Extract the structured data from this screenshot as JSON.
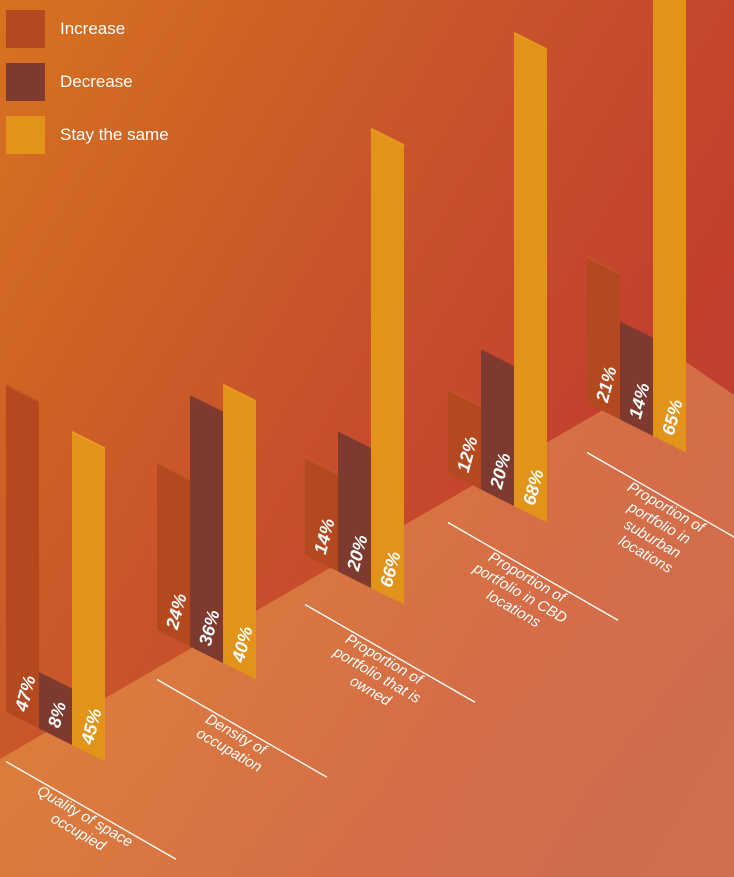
{
  "legend": {
    "increase": "Increase",
    "decrease": "Decrease",
    "same": "Stay the same"
  },
  "colors": {
    "increase": "#b4491f",
    "decrease": "#7e3a2e",
    "same": "#e2941a",
    "increase_highlight": "#c65a26",
    "same_highlight": "#eea423"
  },
  "chart_data": {
    "type": "bar",
    "categories": [
      "Quality of space occupied",
      "Density of occupation",
      "Proportion of portfolio that is owned",
      "Proportion of portfolio in CBD locations",
      "Proportion of portfolio in suburban locations"
    ],
    "series": [
      {
        "name": "Increase",
        "values": [
          47,
          24,
          14,
          12,
          21
        ]
      },
      {
        "name": "Decrease",
        "values": [
          8,
          36,
          20,
          20,
          14
        ]
      },
      {
        "name": "Stay the same",
        "values": [
          45,
          40,
          66,
          68,
          65
        ]
      }
    ],
    "value_labels": [
      [
        "47%",
        "8%",
        "45%"
      ],
      [
        "24%",
        "36%",
        "40%"
      ],
      [
        "14%",
        "20%",
        "66%"
      ],
      [
        "12%",
        "20%",
        "68%"
      ],
      [
        "21%",
        "14%",
        "65%"
      ]
    ],
    "category_label_lines": [
      [
        "Quality of space",
        "occupied"
      ],
      [
        "Density of",
        "occupation"
      ],
      [
        "Proportion of",
        "portfolio that is",
        "owned"
      ],
      [
        "Proportion of",
        "portfolio in CBD",
        "locations"
      ],
      [
        "Proportion of",
        "portfolio in",
        "suburban",
        "locations"
      ]
    ],
    "unit": "%"
  }
}
